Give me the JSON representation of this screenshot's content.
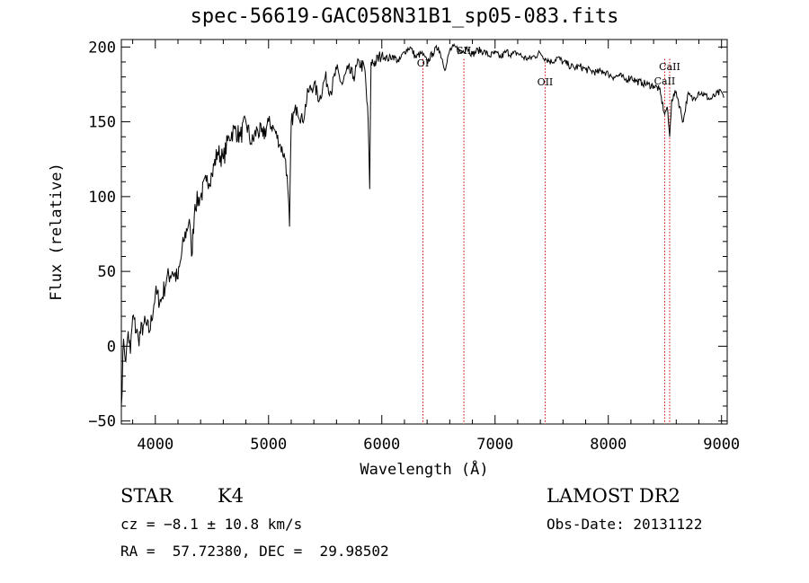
{
  "chart_data": {
    "type": "line",
    "title": "spec-56619-GAC058N31B1_sp05-083.fits",
    "xlabel": "Wavelength (Å)",
    "ylabel": "Flux (relative)",
    "xlim": [
      3700,
      9050
    ],
    "ylim": [
      -52,
      205
    ],
    "x_ticks": [
      4000,
      5000,
      6000,
      7000,
      8000,
      9000
    ],
    "y_ticks": [
      -50,
      0,
      50,
      100,
      150,
      200
    ],
    "x_tick_labels": [
      "4000",
      "5000",
      "6000",
      "7000",
      "8000",
      "9000"
    ],
    "y_tick_labels": [
      "−50",
      "0",
      "50",
      "100",
      "150",
      "200"
    ],
    "grid": false,
    "series": [
      {
        "color": "#000000",
        "x": [
          3700,
          3720,
          3740,
          3760,
          3780,
          3800,
          3850,
          3900,
          3950,
          4000,
          4050,
          4100,
          4150,
          4200,
          4250,
          4300,
          4320,
          4350,
          4400,
          4450,
          4500,
          4550,
          4600,
          4650,
          4700,
          4750,
          4800,
          4850,
          4900,
          4950,
          5000,
          5050,
          5100,
          5150,
          5170,
          5185,
          5200,
          5250,
          5300,
          5350,
          5400,
          5450,
          5500,
          5550,
          5600,
          5650,
          5700,
          5750,
          5800,
          5850,
          5880,
          5893,
          5905,
          5950,
          6000,
          6050,
          6100,
          6150,
          6200,
          6250,
          6300,
          6350,
          6400,
          6450,
          6500,
          6563,
          6600,
          6650,
          6700,
          6750,
          6800,
          6850,
          6900,
          6950,
          7000,
          7050,
          7100,
          7150,
          7200,
          7250,
          7300,
          7350,
          7400,
          7450,
          7500,
          7550,
          7600,
          7650,
          7700,
          7750,
          7800,
          7850,
          7900,
          7950,
          8000,
          8050,
          8100,
          8150,
          8200,
          8250,
          8300,
          8350,
          8400,
          8450,
          8498,
          8520,
          8542,
          8560,
          8600,
          8662,
          8700,
          8750,
          8800,
          8850,
          8900,
          8950,
          9000,
          9020
        ],
        "values": [
          -40,
          5,
          -10,
          10,
          -5,
          20,
          5,
          15,
          10,
          35,
          30,
          45,
          50,
          45,
          70,
          85,
          60,
          95,
          100,
          110,
          115,
          130,
          125,
          140,
          145,
          140,
          150,
          135,
          145,
          140,
          150,
          145,
          135,
          125,
          105,
          80,
          150,
          160,
          150,
          170,
          175,
          165,
          180,
          170,
          185,
          175,
          185,
          180,
          190,
          185,
          150,
          105,
          190,
          190,
          195,
          192,
          194,
          190,
          197,
          200,
          193,
          196,
          190,
          196,
          200,
          185,
          198,
          200,
          196,
          200,
          195,
          198,
          197,
          194,
          196,
          193,
          197,
          195,
          196,
          193,
          192,
          194,
          196,
          192,
          190,
          193,
          190,
          188,
          186,
          187,
          185,
          184,
          183,
          184,
          182,
          180,
          181,
          178,
          180,
          177,
          176,
          175,
          174,
          172,
          155,
          160,
          140,
          165,
          170,
          150,
          168,
          165,
          170,
          168,
          165,
          168,
          170,
          166
        ]
      }
    ],
    "lines": [
      {
        "label": "OI",
        "x": 6363
      },
      {
        "label": "SII",
        "x": 6725
      },
      {
        "label": "OII",
        "x": 7442
      },
      {
        "label": "CaII",
        "x": 8542
      },
      {
        "label": "CaII",
        "x": 8498
      }
    ]
  },
  "info": {
    "object_class": "STAR",
    "subclass": "K4",
    "survey": "LAMOST DR2",
    "redshift": "cz = −8.1 ± 10.8 km/s",
    "obs_date": "Obs-Date: 20131122",
    "coords": "RA =  57.72380, DEC =  29.98502"
  }
}
